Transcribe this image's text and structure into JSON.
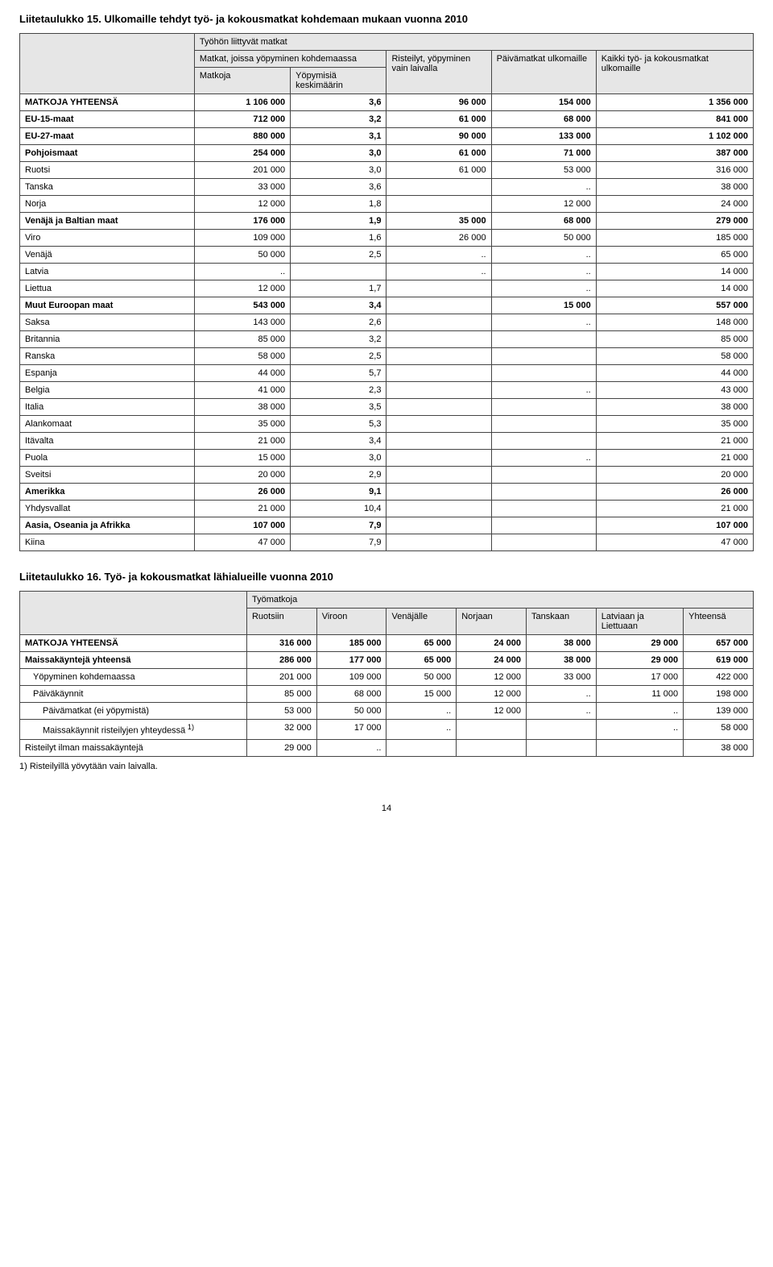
{
  "table15": {
    "title": "Liitetaulukko 15. Ulkomaille tehdyt työ- ja kokousmatkat kohdemaan mukaan vuonna 2010",
    "head": {
      "top": "Työhön liittyvät matkat",
      "col1a": "Matkat, joissa yöpyminen kohdemaassa",
      "col1b_left": "Matkoja",
      "col1b_right": "Yöpymisiä keskimäärin",
      "col2_top": "Risteilyt, yöpyminen vain laivalla",
      "col3_top": "Päivämatkat ulkomaille",
      "col4_top": "Kaikki työ- ja kokousmatkat ulkomaille"
    },
    "rows": [
      {
        "label": "MATKOJA YHTEENSÄ",
        "bold": true,
        "c1": "1 106 000",
        "c2": "3,6",
        "c3": "96 000",
        "c4": "154 000",
        "c5": "1 356 000"
      },
      {
        "label": "EU-15-maat",
        "bold": true,
        "c1": "712 000",
        "c2": "3,2",
        "c3": "61 000",
        "c4": "68 000",
        "c5": "841 000"
      },
      {
        "label": "EU-27-maat",
        "bold": true,
        "c1": "880 000",
        "c2": "3,1",
        "c3": "90 000",
        "c4": "133 000",
        "c5": "1 102 000"
      },
      {
        "label": "Pohjoismaat",
        "bold": true,
        "c1": "254 000",
        "c2": "3,0",
        "c3": "61 000",
        "c4": "71 000",
        "c5": "387 000"
      },
      {
        "label": "Ruotsi",
        "c1": "201 000",
        "c2": "3,0",
        "c3": "61 000",
        "c4": "53 000",
        "c5": "316 000"
      },
      {
        "label": "Tanska",
        "c1": "33 000",
        "c2": "3,6",
        "c3": "",
        "c4": "..",
        "c5": "38 000"
      },
      {
        "label": "Norja",
        "c1": "12 000",
        "c2": "1,8",
        "c3": "",
        "c4": "12 000",
        "c5": "24 000"
      },
      {
        "label": "Venäjä ja Baltian maat",
        "bold": true,
        "c1": "176 000",
        "c2": "1,9",
        "c3": "35 000",
        "c4": "68 000",
        "c5": "279 000"
      },
      {
        "label": "Viro",
        "c1": "109 000",
        "c2": "1,6",
        "c3": "26 000",
        "c4": "50 000",
        "c5": "185 000"
      },
      {
        "label": "Venäjä",
        "c1": "50 000",
        "c2": "2,5",
        "c3": "..",
        "c4": "..",
        "c5": "65 000"
      },
      {
        "label": "Latvia",
        "c1": "..",
        "c2": "",
        "c3": "..",
        "c4": "..",
        "c5": "14 000"
      },
      {
        "label": "Liettua",
        "c1": "12 000",
        "c2": "1,7",
        "c3": "",
        "c4": "..",
        "c5": "14 000"
      },
      {
        "label": "Muut Euroopan maat",
        "bold": true,
        "c1": "543 000",
        "c2": "3,4",
        "c3": "",
        "c4": "15 000",
        "c5": "557 000"
      },
      {
        "label": "Saksa",
        "c1": "143 000",
        "c2": "2,6",
        "c3": "",
        "c4": "..",
        "c5": "148 000"
      },
      {
        "label": "Britannia",
        "c1": "85 000",
        "c2": "3,2",
        "c3": "",
        "c4": "",
        "c5": "85 000"
      },
      {
        "label": "Ranska",
        "c1": "58 000",
        "c2": "2,5",
        "c3": "",
        "c4": "",
        "c5": "58 000"
      },
      {
        "label": "Espanja",
        "c1": "44 000",
        "c2": "5,7",
        "c3": "",
        "c4": "",
        "c5": "44 000"
      },
      {
        "label": "Belgia",
        "c1": "41 000",
        "c2": "2,3",
        "c3": "",
        "c4": "..",
        "c5": "43 000"
      },
      {
        "label": "Italia",
        "c1": "38 000",
        "c2": "3,5",
        "c3": "",
        "c4": "",
        "c5": "38 000"
      },
      {
        "label": "Alankomaat",
        "c1": "35 000",
        "c2": "5,3",
        "c3": "",
        "c4": "",
        "c5": "35 000"
      },
      {
        "label": "Itävalta",
        "c1": "21 000",
        "c2": "3,4",
        "c3": "",
        "c4": "",
        "c5": "21 000"
      },
      {
        "label": "Puola",
        "c1": "15 000",
        "c2": "3,0",
        "c3": "",
        "c4": "..",
        "c5": "21 000"
      },
      {
        "label": "Sveitsi",
        "c1": "20 000",
        "c2": "2,9",
        "c3": "",
        "c4": "",
        "c5": "20 000"
      },
      {
        "label": "Amerikka",
        "bold": true,
        "c1": "26 000",
        "c2": "9,1",
        "c3": "",
        "c4": "",
        "c5": "26 000"
      },
      {
        "label": "Yhdysvallat",
        "c1": "21 000",
        "c2": "10,4",
        "c3": "",
        "c4": "",
        "c5": "21 000"
      },
      {
        "label": "Aasia, Oseania ja Afrikka",
        "bold": true,
        "c1": "107 000",
        "c2": "7,9",
        "c3": "",
        "c4": "",
        "c5": "107 000"
      },
      {
        "label": "Kiina",
        "c1": "47 000",
        "c2": "7,9",
        "c3": "",
        "c4": "",
        "c5": "47 000"
      }
    ]
  },
  "table16": {
    "title": "Liitetaulukko 16. Työ- ja kokousmatkat lähialueille vuonna 2010",
    "head": {
      "top": "Työmatkoja",
      "cols": [
        "Ruotsiin",
        "Viroon",
        "Venäjälle",
        "Norjaan",
        "Tanskaan",
        "Latviaan ja Liettuaan",
        "Yhteensä"
      ]
    },
    "rows": [
      {
        "label": "MATKOJA YHTEENSÄ",
        "bold": true,
        "indent": 0,
        "v": [
          "316 000",
          "185 000",
          "65 000",
          "24 000",
          "38 000",
          "29 000",
          "657 000"
        ]
      },
      {
        "label": "Maissakäyntejä yhteensä",
        "bold": true,
        "indent": 0,
        "v": [
          "286 000",
          "177 000",
          "65 000",
          "24 000",
          "38 000",
          "29 000",
          "619 000"
        ]
      },
      {
        "label": "Yöpyminen kohdemaassa",
        "indent": 1,
        "v": [
          "201 000",
          "109 000",
          "50 000",
          "12 000",
          "33 000",
          "17 000",
          "422 000"
        ]
      },
      {
        "label": "Päiväkäynnit",
        "indent": 1,
        "v": [
          "85 000",
          "68 000",
          "15 000",
          "12 000",
          "..",
          "11 000",
          "198 000"
        ]
      },
      {
        "label": "Päivämatkat (ei yöpymistä)",
        "indent": 2,
        "v": [
          "53 000",
          "50 000",
          "..",
          "12 000",
          "..",
          "..",
          "139 000"
        ]
      },
      {
        "label": "Maissakäynnit risteilyjen yhteydessä",
        "sup": "1)",
        "indent": 2,
        "v": [
          "32 000",
          "17 000",
          "..",
          "",
          "",
          "..",
          "58 000"
        ]
      },
      {
        "label": "Risteilyt ilman maissakäyntejä",
        "indent": 0,
        "v": [
          "29 000",
          "..",
          "",
          "",
          "",
          "",
          "38 000"
        ]
      }
    ],
    "footnote": "1) Risteilyillä yövytään vain laivalla."
  },
  "pagenum": "14"
}
